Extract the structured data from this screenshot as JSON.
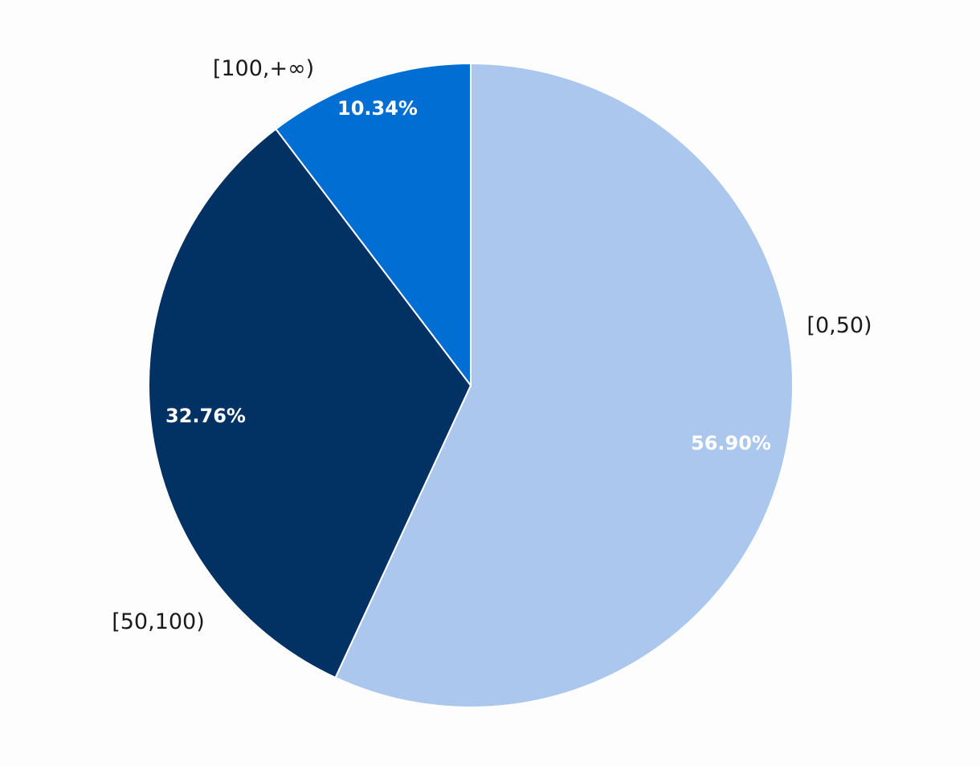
{
  "chart_data": {
    "type": "pie",
    "title": "",
    "start_angle_deg": 0,
    "direction": "clockwise",
    "slices": [
      {
        "name": "[0,50)",
        "value": 56.9,
        "display": "56.90%",
        "color": "#abc7ed"
      },
      {
        "name": "[50,100)",
        "value": 32.76,
        "display": "32.76%",
        "color": "#023164"
      },
      {
        "name": "[100,+∞)",
        "value": 10.34,
        "display": "10.34%",
        "color": "#016ed3"
      }
    ]
  }
}
